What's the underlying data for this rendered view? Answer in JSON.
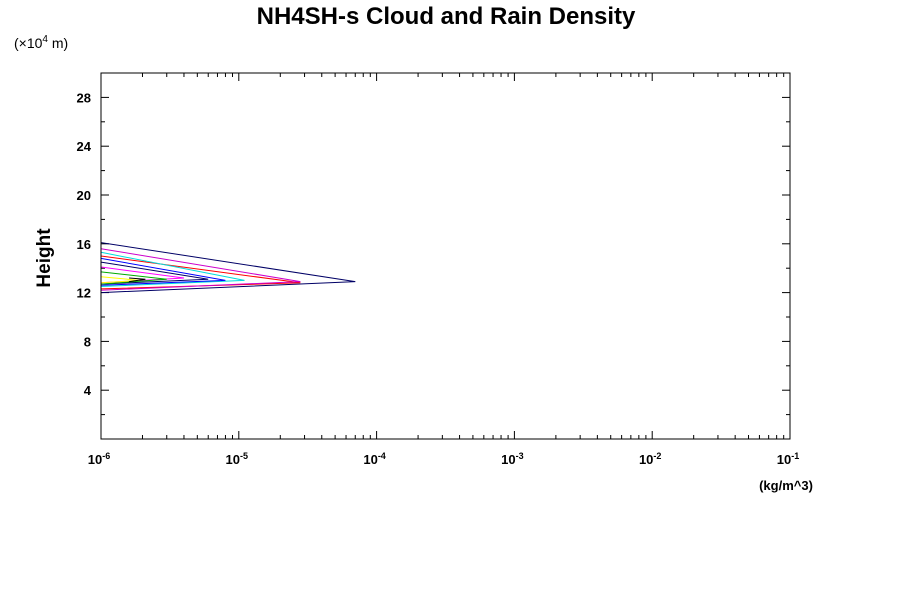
{
  "chart_data": {
    "type": "line",
    "title": "NH4SH-s Cloud and Rain Density",
    "ylabel": "Height",
    "y_unit_prefix": "(×10",
    "y_unit_exp": "4",
    "y_unit_suffix": " m)",
    "xunit": "(kg/m^3)",
    "x_scale": "log",
    "xlim": [
      1e-06,
      0.1
    ],
    "ylim": [
      0,
      30
    ],
    "x_tick_labels": [
      {
        "value": 1e-06,
        "base": "10",
        "exp": "-6"
      },
      {
        "value": 1e-05,
        "base": "10",
        "exp": "-5"
      },
      {
        "value": 0.0001,
        "base": "10",
        "exp": "-4"
      },
      {
        "value": 0.001,
        "base": "10",
        "exp": "-3"
      },
      {
        "value": 0.01,
        "base": "10",
        "exp": "-2"
      },
      {
        "value": 0.1,
        "base": "10",
        "exp": "-1"
      }
    ],
    "y_ticks": [
      "4",
      "8",
      "12",
      "16",
      "20",
      "24",
      "28"
    ],
    "grid": false,
    "series": [
      {
        "color": "#000066",
        "points": [
          [
            1e-06,
            16.1
          ],
          [
            7e-05,
            12.9
          ],
          [
            1e-06,
            12.0
          ]
        ]
      },
      {
        "color": "#ff0000",
        "points": [
          [
            1e-06,
            15.0
          ],
          [
            2.8e-05,
            12.8
          ],
          [
            1e-06,
            12.3
          ]
        ]
      },
      {
        "color": "#cc00cc",
        "points": [
          [
            1e-06,
            15.6
          ],
          [
            2.8e-05,
            12.9
          ],
          [
            1e-06,
            12.2
          ]
        ]
      },
      {
        "color": "#00dddd",
        "points": [
          [
            1e-06,
            15.3
          ],
          [
            1.1e-05,
            13.0
          ],
          [
            1e-06,
            12.5
          ]
        ]
      },
      {
        "color": "#0000ff",
        "points": [
          [
            1e-06,
            14.8
          ],
          [
            8e-06,
            13.0
          ],
          [
            1e-06,
            12.6
          ]
        ]
      },
      {
        "color": "#000066",
        "points": [
          [
            1e-06,
            14.5
          ],
          [
            6e-06,
            13.1
          ],
          [
            1e-06,
            12.7
          ]
        ]
      },
      {
        "color": "#ff00ff",
        "points": [
          [
            1e-06,
            14.1
          ],
          [
            4e-06,
            13.2
          ],
          [
            1e-06,
            12.8
          ]
        ]
      },
      {
        "color": "#00aa00",
        "points": [
          [
            1e-06,
            13.7
          ],
          [
            3e-06,
            13.1
          ],
          [
            1e-06,
            12.7
          ]
        ]
      },
      {
        "color": "#ffff00",
        "points": [
          [
            1e-06,
            13.3
          ],
          [
            1.9e-06,
            13.0
          ],
          [
            1e-06,
            12.8
          ]
        ]
      },
      {
        "color": "#000000",
        "points": [
          [
            1.6e-06,
            13.2
          ],
          [
            2.1e-06,
            13.1
          ],
          [
            1.6e-06,
            12.9
          ]
        ]
      }
    ]
  }
}
